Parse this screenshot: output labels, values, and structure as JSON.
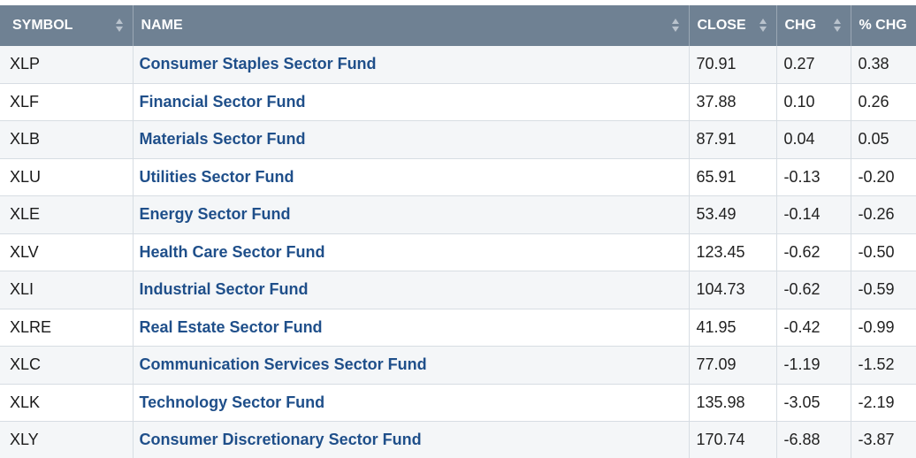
{
  "table": {
    "headers": {
      "symbol": "SYMBOL",
      "name": "NAME",
      "close": "CLOSE",
      "chg": "CHG",
      "pct_chg": "% CHG"
    },
    "rows": [
      {
        "symbol": "XLP",
        "name": "Consumer Staples Sector Fund",
        "close": "70.91",
        "chg": "0.27",
        "pct_chg": "0.38"
      },
      {
        "symbol": "XLF",
        "name": "Financial Sector Fund",
        "close": "37.88",
        "chg": "0.10",
        "pct_chg": "0.26"
      },
      {
        "symbol": "XLB",
        "name": "Materials Sector Fund",
        "close": "87.91",
        "chg": "0.04",
        "pct_chg": "0.05"
      },
      {
        "symbol": "XLU",
        "name": "Utilities Sector Fund",
        "close": "65.91",
        "chg": "-0.13",
        "pct_chg": "-0.20"
      },
      {
        "symbol": "XLE",
        "name": "Energy Sector Fund",
        "close": "53.49",
        "chg": "-0.14",
        "pct_chg": "-0.26"
      },
      {
        "symbol": "XLV",
        "name": "Health Care Sector Fund",
        "close": "123.45",
        "chg": "-0.62",
        "pct_chg": "-0.50"
      },
      {
        "symbol": "XLI",
        "name": "Industrial Sector Fund",
        "close": "104.73",
        "chg": "-0.62",
        "pct_chg": "-0.59"
      },
      {
        "symbol": "XLRE",
        "name": "Real Estate Sector Fund",
        "close": "41.95",
        "chg": "-0.42",
        "pct_chg": "-0.99"
      },
      {
        "symbol": "XLC",
        "name": "Communication Services Sector Fund",
        "close": "77.09",
        "chg": "-1.19",
        "pct_chg": "-1.52"
      },
      {
        "symbol": "XLK",
        "name": "Technology Sector Fund",
        "close": "135.98",
        "chg": "-3.05",
        "pct_chg": "-2.19"
      },
      {
        "symbol": "XLY",
        "name": "Consumer Discretionary Sector Fund",
        "close": "170.74",
        "chg": "-6.88",
        "pct_chg": "-3.87"
      }
    ]
  },
  "colors": {
    "header_bg": "#6f8193",
    "link": "#1f4f8a",
    "row_alt": "#f4f6f8"
  },
  "icons": {
    "sort": "sort-updown-icon",
    "sort_active": "sort-desc-icon"
  }
}
